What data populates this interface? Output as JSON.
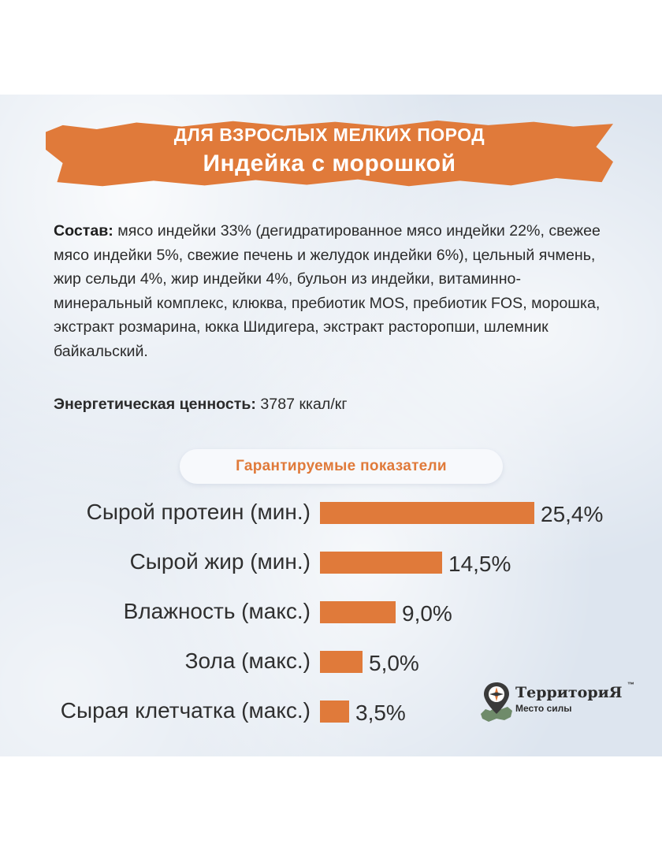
{
  "banner": {
    "line1": "ДЛЯ ВЗРОСЛЫХ МЕЛКИХ ПОРОД",
    "line2": "Индейка с морошкой"
  },
  "composition": {
    "label": "Состав:",
    "text": " мясо индейки 33% (дегидратированное мясо индейки 22%, свежее мясо индейки 5%, свежие печень и желудок индейки 6%), цельный ячмень, жир сельди 4%, жир индейки 4%, бульон из индейки, витаминно-минеральный комплекс, клюква, пребиотик MOS, пребиотик FOS, морошка, экстракт розмарина, юкка Шидигера, экстракт расторопши, шлемник байкальский."
  },
  "energy": {
    "label": "Энергетическая ценность:",
    "value": " 3787 ккал/кг"
  },
  "section_title": "Гарантируемые показатели",
  "chart_data": {
    "type": "bar",
    "orientation": "horizontal",
    "title": "Гарантируемые показатели",
    "categories": [
      "Сырой протеин (мин.)",
      "Сырой жир (мин.)",
      "Влажность (макс.)",
      "Зола (макс.)",
      "Сырая клетчатка (макс.)"
    ],
    "values": [
      25.4,
      14.5,
      9.0,
      5.0,
      3.5
    ],
    "value_labels": [
      "25,4%",
      "14,5%",
      "9,0%",
      "5,0%",
      "3,5%"
    ],
    "unit": "%",
    "xlim": [
      0,
      25.4
    ],
    "bar_color": "#e07a3a",
    "grid": false
  },
  "brand": {
    "name": "ТерриториЯ",
    "tm": "™",
    "tagline": "Место силы",
    "icon": "compass-map-pin-icon"
  },
  "colors": {
    "accent": "#e07a3a",
    "background": "#dde5ef",
    "text": "#2b2b2b"
  }
}
